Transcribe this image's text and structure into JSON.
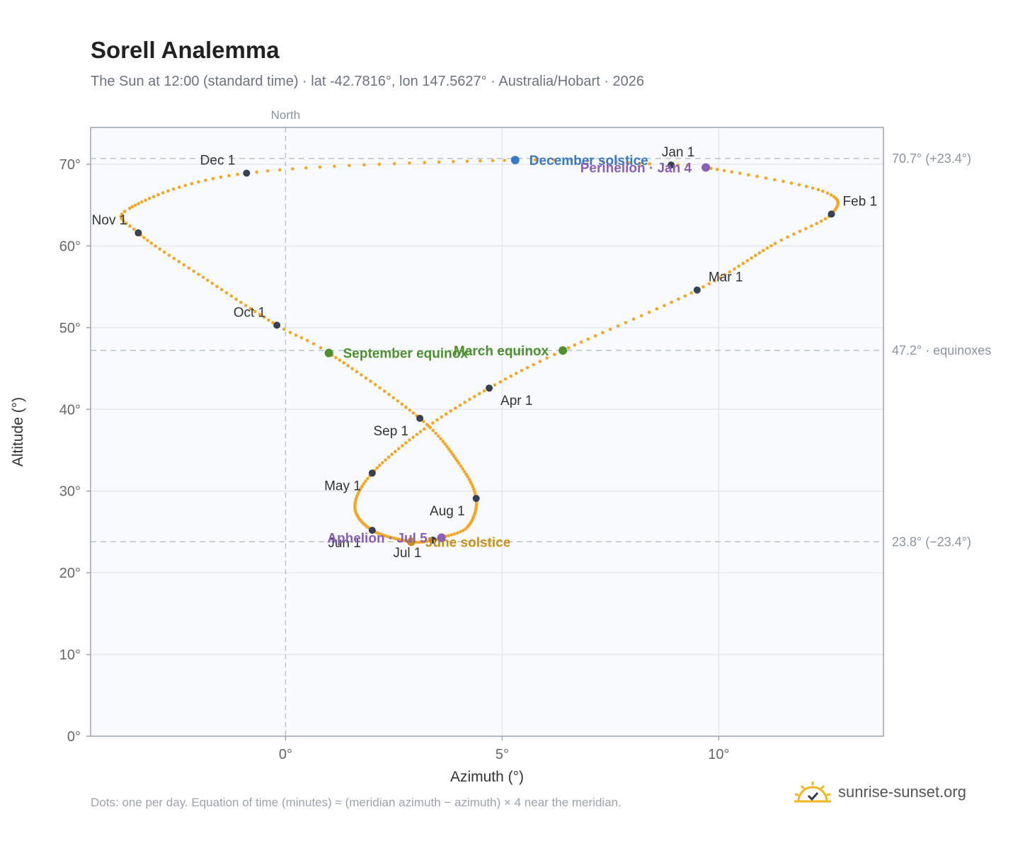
{
  "title": "Sorell Analemma",
  "subtitle": "The Sun at 12:00 (standard time) · lat -42.7816°, lon 147.5627° · Australia/Hobart · 2026",
  "footnote": "Dots: one per day. Equation of time (minutes) ≈ (meridian azimuth − azimuth) × 4 near the meridian.",
  "brand": {
    "text": "sunrise-sunset.org",
    "icon": "sun-check-icon"
  },
  "colors": {
    "curve": "#f4a626",
    "month_marker": "#374151",
    "equinox": "#4e8f2f",
    "december_solstice": "#3a78c2",
    "june_solstice": "#c9901c",
    "perihelion_aphelion": "#8b5fb5",
    "plot_bg": "#f8fafd",
    "grid": "#e5e9ef",
    "reference_line": "#b7c2cc"
  },
  "chart_data": {
    "type": "scatter",
    "xlabel": "Azimuth (°)",
    "ylabel": "Altitude (°)",
    "xlim": [
      -4.5,
      13.8
    ],
    "ylim": [
      0,
      74.5
    ],
    "x_ticks": [
      0,
      5,
      10
    ],
    "x_tick_labels": [
      "0°",
      "5°",
      "10°"
    ],
    "y_ticks": [
      0,
      10,
      20,
      30,
      40,
      50,
      60,
      70
    ],
    "y_tick_labels": [
      "0°",
      "10°",
      "20°",
      "30°",
      "40°",
      "50°",
      "60°",
      "70°"
    ],
    "grid": true,
    "north_line": {
      "x": 0,
      "label": "North"
    },
    "reference_lines": [
      {
        "y": 70.7,
        "label": "70.7° (+23.4°)"
      },
      {
        "y": 47.2,
        "label": "47.2° · equinoxes"
      },
      {
        "y": 23.8,
        "label": "23.8° (−23.4°)"
      }
    ],
    "series": [
      {
        "points_per": "day",
        "keypoints": [
          {
            "date": "2026-01-01",
            "x": 8.9,
            "y": 69.9
          },
          {
            "date": "2026-01-04",
            "x": 9.7,
            "y": 69.6
          },
          {
            "date": "2026-01-20",
            "x": 12.4,
            "y": 66.7
          },
          {
            "date": "2026-02-01",
            "x": 12.6,
            "y": 63.9
          },
          {
            "date": "2026-02-12",
            "x": 11.3,
            "y": 60.3
          },
          {
            "date": "2026-03-01",
            "x": 9.5,
            "y": 54.6
          },
          {
            "date": "2026-03-20",
            "x": 6.4,
            "y": 47.2
          },
          {
            "date": "2026-04-01",
            "x": 4.7,
            "y": 42.6
          },
          {
            "date": "2026-04-15",
            "x": 3.2,
            "y": 37.6
          },
          {
            "date": "2026-05-01",
            "x": 2.0,
            "y": 32.2
          },
          {
            "date": "2026-05-15",
            "x": 1.6,
            "y": 28.1
          },
          {
            "date": "2026-06-01",
            "x": 2.0,
            "y": 25.2
          },
          {
            "date": "2026-06-21",
            "x": 2.9,
            "y": 23.8
          },
          {
            "date": "2026-07-01",
            "x": 3.4,
            "y": 24.0
          },
          {
            "date": "2026-07-05",
            "x": 3.6,
            "y": 24.3
          },
          {
            "date": "2026-07-15",
            "x": 4.2,
            "y": 25.6
          },
          {
            "date": "2026-08-01",
            "x": 4.4,
            "y": 29.1
          },
          {
            "date": "2026-08-15",
            "x": 4.0,
            "y": 33.4
          },
          {
            "date": "2026-09-01",
            "x": 3.1,
            "y": 38.9
          },
          {
            "date": "2026-09-23",
            "x": 1.0,
            "y": 46.9
          },
          {
            "date": "2026-10-01",
            "x": -0.2,
            "y": 50.3
          },
          {
            "date": "2026-10-16",
            "x": -1.8,
            "y": 55.8
          },
          {
            "date": "2026-11-01",
            "x": -3.4,
            "y": 61.6
          },
          {
            "date": "2026-11-10",
            "x": -3.6,
            "y": 64.6
          },
          {
            "date": "2026-12-01",
            "x": -0.9,
            "y": 68.9
          },
          {
            "date": "2026-12-21",
            "x": 5.3,
            "y": 70.5
          },
          {
            "date": "2026-12-31",
            "x": 8.6,
            "y": 70.0
          }
        ]
      }
    ],
    "month_markers": [
      {
        "label": "Jan 1",
        "x": 8.9,
        "y": 69.9,
        "anchor": "above"
      },
      {
        "label": "Feb 1",
        "x": 12.6,
        "y": 63.9,
        "anchor": "right-above"
      },
      {
        "label": "Mar 1",
        "x": 9.5,
        "y": 54.6,
        "anchor": "right-above"
      },
      {
        "label": "Apr 1",
        "x": 4.7,
        "y": 42.6,
        "anchor": "right-below"
      },
      {
        "label": "May 1",
        "x": 2.0,
        "y": 32.2,
        "anchor": "left-below"
      },
      {
        "label": "Jun 1",
        "x": 2.0,
        "y": 25.2,
        "anchor": "left-below"
      },
      {
        "label": "Jul 1",
        "x": 3.4,
        "y": 24.0,
        "anchor": "left-below"
      },
      {
        "label": "Aug 1",
        "x": 4.4,
        "y": 29.1,
        "anchor": "left-below"
      },
      {
        "label": "Sep 1",
        "x": 3.1,
        "y": 38.9,
        "anchor": "left-below"
      },
      {
        "label": "Oct 1",
        "x": -0.2,
        "y": 50.3,
        "anchor": "left-above"
      },
      {
        "label": "Nov 1",
        "x": -3.4,
        "y": 61.6,
        "anchor": "left-above"
      },
      {
        "label": "Dec 1",
        "x": -0.9,
        "y": 68.9,
        "anchor": "left-above"
      }
    ],
    "events": [
      {
        "label": "December solstice",
        "x": 5.3,
        "y": 70.5,
        "color_key": "december_solstice",
        "anchor": "right"
      },
      {
        "label": "Perihelion · Jan 4",
        "x": 9.7,
        "y": 69.6,
        "color_key": "perihelion_aphelion",
        "anchor": "left"
      },
      {
        "label": "March equinox",
        "x": 6.4,
        "y": 47.2,
        "color_key": "equinox",
        "anchor": "left"
      },
      {
        "label": "September equinox",
        "x": 1.0,
        "y": 46.9,
        "color_key": "equinox",
        "anchor": "right"
      },
      {
        "label": "June solstice",
        "x": 2.9,
        "y": 23.8,
        "color_key": "june_solstice",
        "anchor": "right"
      },
      {
        "label": "Aphelion · Jul 5",
        "x": 3.6,
        "y": 24.3,
        "color_key": "perihelion_aphelion",
        "anchor": "left"
      }
    ]
  }
}
